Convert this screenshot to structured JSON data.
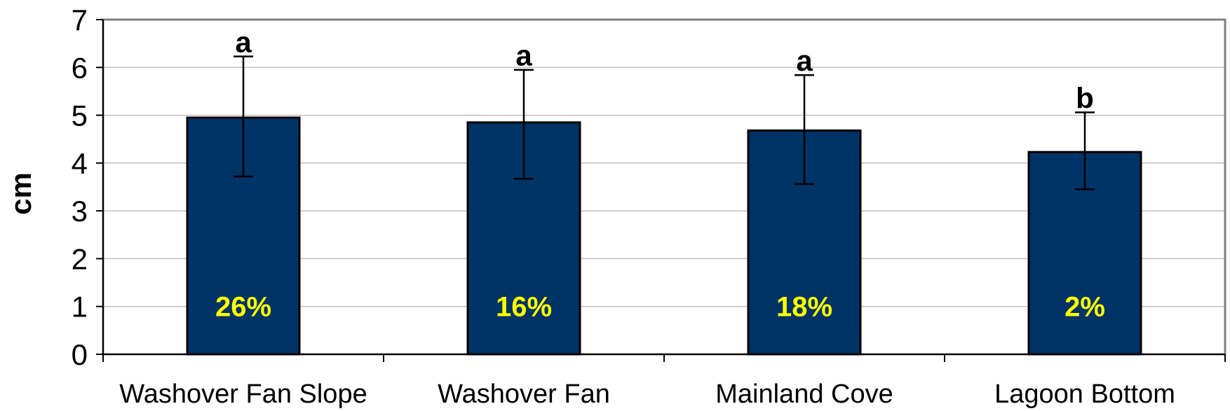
{
  "chart_data": {
    "type": "bar",
    "categories": [
      "Washover Fan Slope",
      "Washover Fan",
      "Mainland Cove",
      "Lagoon Bottom"
    ],
    "values": [
      4.95,
      4.85,
      4.68,
      4.23
    ],
    "error_high": [
      6.23,
      5.95,
      5.84,
      5.06
    ],
    "error_low": [
      3.72,
      3.67,
      3.56,
      3.45
    ],
    "bar_labels": [
      "26%",
      "16%",
      "18%",
      "2%"
    ],
    "group_letters": [
      "a",
      "a",
      "a",
      "b"
    ],
    "title": "",
    "xlabel": "",
    "ylabel": "cm",
    "ylim": [
      0,
      7
    ],
    "yticks": [
      0,
      1,
      2,
      3,
      4,
      5,
      6,
      7
    ],
    "grid": true,
    "legend": "none",
    "colors": {
      "bar": "#003366",
      "bar_label": "#ffff00",
      "grid": "#c0c0c0",
      "axis": "#808080"
    }
  }
}
